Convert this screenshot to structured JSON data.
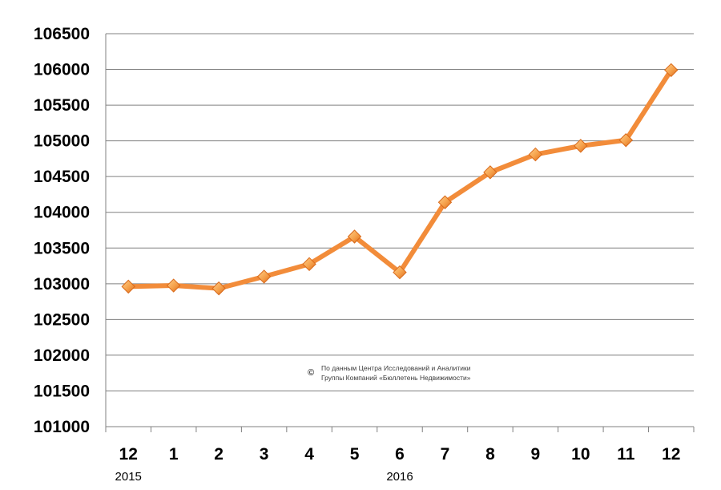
{
  "chart_data": {
    "type": "line",
    "categories": [
      "12",
      "1",
      "2",
      "3",
      "4",
      "5",
      "6",
      "7",
      "8",
      "9",
      "10",
      "11",
      "12"
    ],
    "year_labels": [
      {
        "text": "2015",
        "category_index": 0
      },
      {
        "text": "2016",
        "category_index": 6
      }
    ],
    "series": [
      {
        "values": [
          102960,
          102975,
          102935,
          103100,
          103275,
          103660,
          103160,
          104140,
          104560,
          104810,
          104930,
          105010,
          105990
        ]
      }
    ],
    "ylim": [
      101000,
      106500
    ],
    "ytick_step": 500,
    "grid": true,
    "legend": "none",
    "colors": {
      "line": "#f28c3a",
      "marker": "#f5a04a",
      "marker_dark": "#d9691a",
      "grid": "#808080"
    },
    "credit": {
      "mark": "©",
      "lines": [
        "По данным Центра Исследований и Аналитики",
        "Группы Компаний «Бюллетень Недвижимости»"
      ]
    }
  }
}
